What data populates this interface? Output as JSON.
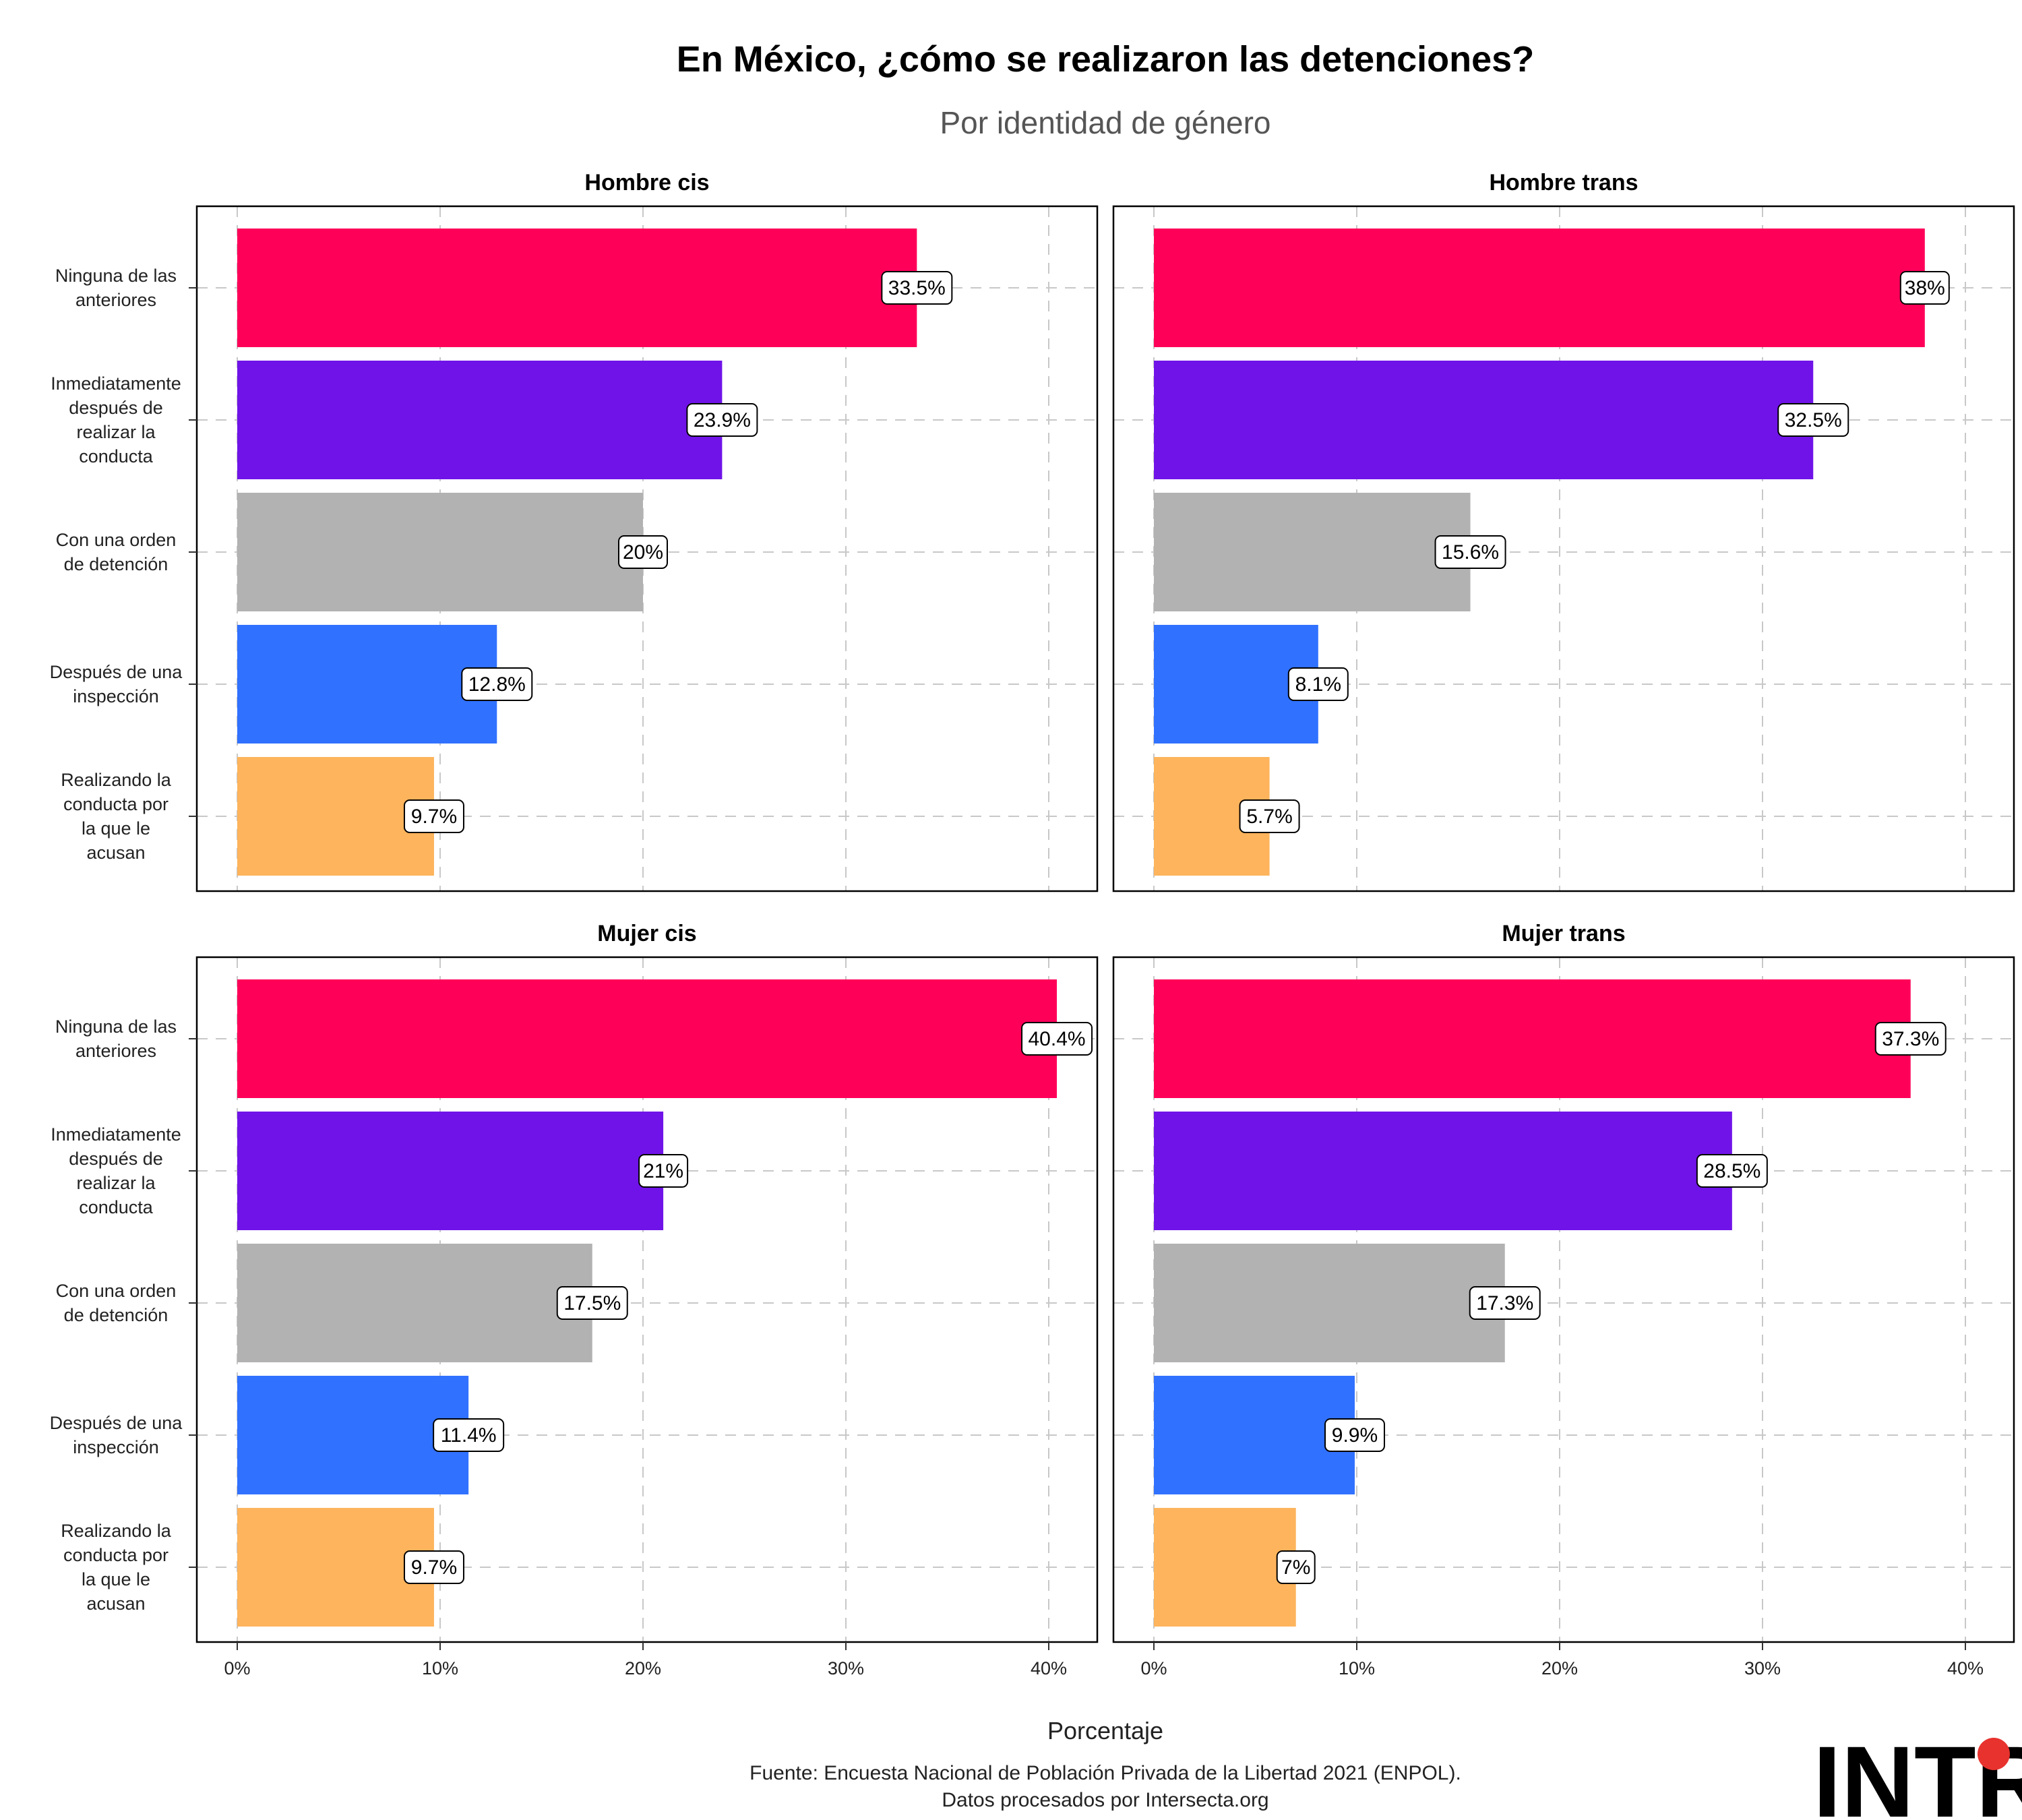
{
  "chart_data": {
    "type": "bar",
    "orientation": "horizontal",
    "title": "En México, ¿cómo se realizaron las detenciones?",
    "subtitle": "Por identidad de género",
    "xlabel": "Porcentaje",
    "xlim": [
      0,
      42
    ],
    "x_ticks": [
      "0%",
      "10%",
      "20%",
      "30%",
      "40%"
    ],
    "grid": true,
    "categories": [
      [
        "Ninguna de las",
        "anteriores"
      ],
      [
        "Inmediatamente",
        "después de",
        "realizar la",
        "conducta"
      ],
      [
        "Con una orden",
        "de detención"
      ],
      [
        "Después de una",
        "inspección"
      ],
      [
        "Realizando la",
        "conducta por",
        "la que le",
        "acusan"
      ]
    ],
    "category_colors": [
      "#FF0059",
      "#7013E8",
      "#B2B2B2",
      "#3071FF",
      "#FDB45C"
    ],
    "facets": [
      {
        "name": "Hombre cis",
        "values": [
          33.5,
          23.9,
          20,
          12.8,
          9.7
        ],
        "labels": [
          "33.5%",
          "23.9%",
          "20%",
          "12.8%",
          "9.7%"
        ]
      },
      {
        "name": "Hombre trans",
        "values": [
          38,
          32.5,
          15.6,
          8.1,
          5.7
        ],
        "labels": [
          "38%",
          "32.5%",
          "15.6%",
          "8.1%",
          "5.7%"
        ]
      },
      {
        "name": "Mujer cis",
        "values": [
          40.4,
          21,
          17.5,
          11.4,
          9.7
        ],
        "labels": [
          "40.4%",
          "21%",
          "17.5%",
          "11.4%",
          "9.7%"
        ]
      },
      {
        "name": "Mujer trans",
        "values": [
          37.3,
          28.5,
          17.3,
          9.9,
          7
        ],
        "labels": [
          "37.3%",
          "28.5%",
          "17.3%",
          "9.9%",
          "7%"
        ]
      }
    ],
    "caption": [
      "Fuente: Encuesta Nacional de Población Privada de la Libertad 2021 (ENPOL).",
      "Datos procesados por Intersecta.org"
    ]
  },
  "logo": {
    "text": "INTR",
    "accent_color": "#E8322E"
  }
}
